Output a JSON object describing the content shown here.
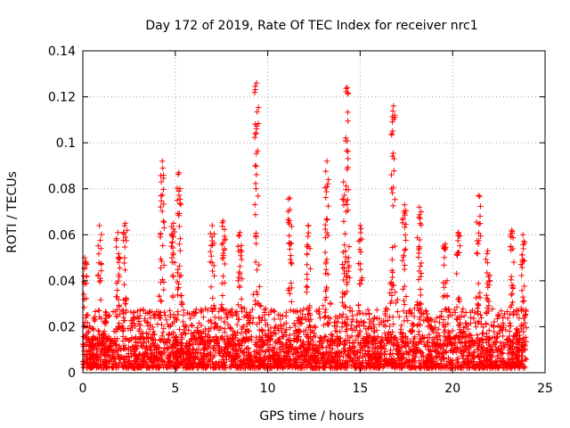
{
  "chart_data": {
    "type": "scatter",
    "title": "Day 172 of 2019, Rate Of TEC Index for receiver nrc1",
    "xlabel": "GPS time / hours",
    "ylabel": "ROTI / TECUs",
    "xlim": [
      0,
      25
    ],
    "ylim": [
      0,
      0.14
    ],
    "xticks": [
      0,
      5,
      10,
      15,
      20,
      25
    ],
    "xtick_labels": [
      "0",
      "5",
      "10",
      "15",
      "20",
      "25"
    ],
    "yticks": [
      0,
      0.02,
      0.04,
      0.06,
      0.08,
      0.1,
      0.12,
      0.14
    ],
    "ytick_labels": [
      "0",
      "0.02",
      "0.04",
      "0.06",
      "0.08",
      "0.1",
      "0.12",
      "0.14"
    ],
    "grid": true,
    "marker": "+",
    "colors": {
      "points": "#ff0000",
      "grid": "#a0a0a0",
      "axes": "#000000"
    },
    "series": [
      {
        "name": "ROTI",
        "note": "Dense cloud of points spanning 0-24 h, bulk between 0.002 and 0.03 TECU/s; notable spikes listed as peaks.",
        "x_range": [
          0,
          24
        ],
        "bulk_y_range": [
          0.002,
          0.03
        ],
        "peaks": [
          {
            "x": 0.1,
            "y": 0.05
          },
          {
            "x": 0.9,
            "y": 0.064
          },
          {
            "x": 1.9,
            "y": 0.061
          },
          {
            "x": 2.3,
            "y": 0.065
          },
          {
            "x": 4.3,
            "y": 0.092
          },
          {
            "x": 4.9,
            "y": 0.065
          },
          {
            "x": 5.2,
            "y": 0.087
          },
          {
            "x": 7.0,
            "y": 0.064
          },
          {
            "x": 7.6,
            "y": 0.066
          },
          {
            "x": 8.5,
            "y": 0.061
          },
          {
            "x": 9.4,
            "y": 0.126
          },
          {
            "x": 11.2,
            "y": 0.076
          },
          {
            "x": 12.2,
            "y": 0.064
          },
          {
            "x": 13.2,
            "y": 0.092
          },
          {
            "x": 14.1,
            "y": 0.083
          },
          {
            "x": 14.3,
            "y": 0.124
          },
          {
            "x": 15.0,
            "y": 0.064
          },
          {
            "x": 16.8,
            "y": 0.116
          },
          {
            "x": 17.4,
            "y": 0.073
          },
          {
            "x": 18.2,
            "y": 0.072
          },
          {
            "x": 19.6,
            "y": 0.056
          },
          {
            "x": 20.3,
            "y": 0.061
          },
          {
            "x": 21.4,
            "y": 0.077
          },
          {
            "x": 21.9,
            "y": 0.053
          },
          {
            "x": 23.2,
            "y": 0.062
          },
          {
            "x": 23.8,
            "y": 0.06
          }
        ]
      }
    ]
  }
}
